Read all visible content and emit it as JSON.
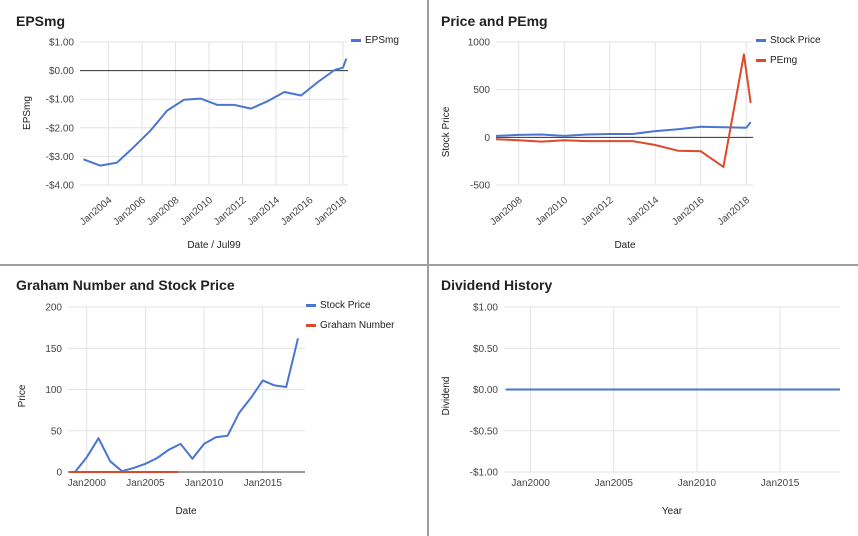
{
  "colors": {
    "blue": "#4a76d2",
    "red": "#dc4a2c",
    "grid": "#e3e3e3",
    "zero": "#333333"
  },
  "chart_data": [
    {
      "type": "line",
      "title": "EPSmg",
      "xlabel": "Date / Jul99",
      "ylabel": "EPSmg",
      "xlim": [
        2002.3,
        2018.3
      ],
      "ylim": [
        -4,
        1
      ],
      "yticks": [
        1,
        0,
        -1,
        -2,
        -3,
        -4
      ],
      "ytick_labels": [
        "$1.00",
        "$0.00",
        "-$1.00",
        "-$2.00",
        "-$3.00",
        "-$4.00"
      ],
      "xticks": [
        2004,
        2006,
        2008,
        2010,
        2012,
        2014,
        2016,
        2018
      ],
      "xtick_labels": [
        "Jan2004",
        "Jan2006",
        "Jan2008",
        "Jan2010",
        "Jan2012",
        "Jan2014",
        "Jan2016",
        "Jan2018"
      ],
      "legend_position": "top-right",
      "series": [
        {
          "name": "EPSmg",
          "color": "blue",
          "x": [
            2002.5,
            2003.5,
            2004.5,
            2005.5,
            2006.5,
            2007.5,
            2008.5,
            2009.5,
            2010.5,
            2011.5,
            2012.5,
            2013.5,
            2014.5,
            2015.5,
            2016.5,
            2017.5,
            2018.0,
            2018.2
          ],
          "y": [
            -3.1,
            -3.32,
            -3.22,
            -2.68,
            -2.1,
            -1.4,
            -1.02,
            -0.98,
            -1.2,
            -1.2,
            -1.33,
            -1.07,
            -0.75,
            -0.87,
            -0.4,
            0.02,
            0.1,
            0.42
          ]
        }
      ]
    },
    {
      "type": "line",
      "title": "Price and PEmg",
      "xlabel": "Date",
      "ylabel": "Stock Price",
      "xlim": [
        2007.0,
        2018.3
      ],
      "ylim": [
        -500,
        1000
      ],
      "yticks": [
        1000,
        500,
        0,
        -500
      ],
      "ytick_labels": [
        "1000",
        "500",
        "0",
        "-500"
      ],
      "xticks": [
        2008,
        2010,
        2012,
        2014,
        2016,
        2018
      ],
      "xtick_labels": [
        "Jan2008",
        "Jan2010",
        "Jan2012",
        "Jan2014",
        "Jan2016",
        "Jan2018"
      ],
      "legend_position": "top-right",
      "series": [
        {
          "name": "Stock Price",
          "color": "blue",
          "x": [
            2007.0,
            2008.0,
            2009.0,
            2010.0,
            2011.0,
            2012.0,
            2013.0,
            2014.0,
            2015.0,
            2016.0,
            2017.0,
            2018.0,
            2018.2
          ],
          "y": [
            15,
            25,
            30,
            15,
            30,
            35,
            35,
            65,
            85,
            110,
            105,
            100,
            160
          ]
        },
        {
          "name": "PEmg",
          "color": "red",
          "x": [
            2007.0,
            2008.0,
            2009.0,
            2010.0,
            2011.0,
            2012.0,
            2013.0,
            2014.0,
            2015.0,
            2016.0,
            2017.0,
            2017.9,
            2018.2
          ],
          "y": [
            -20,
            -30,
            -45,
            -30,
            -40,
            -40,
            -40,
            -80,
            -140,
            -145,
            -310,
            870,
            360
          ]
        }
      ]
    },
    {
      "type": "line",
      "title": "Graham Number and Stock Price",
      "xlabel": "Date",
      "ylabel": "Price",
      "xlim": [
        1998.4,
        2018.6
      ],
      "ylim": [
        0,
        200
      ],
      "yticks": [
        200,
        150,
        100,
        50,
        0
      ],
      "ytick_labels": [
        "200",
        "150",
        "100",
        "50",
        "0"
      ],
      "xticks": [
        2000,
        2005,
        2010,
        2015
      ],
      "xtick_labels": [
        "Jan2000",
        "Jan2005",
        "Jan2010",
        "Jan2015"
      ],
      "legend_position": "top-right",
      "series": [
        {
          "name": "Stock Price",
          "color": "blue",
          "x": [
            1999.0,
            2000.0,
            2001.0,
            2002.0,
            2003.0,
            2004.0,
            2005.0,
            2006.0,
            2007.0,
            2008.0,
            2009.0,
            2010.0,
            2011.0,
            2012.0,
            2013.0,
            2014.0,
            2015.0,
            2016.0,
            2017.0,
            2018.0
          ],
          "y": [
            0,
            18,
            41,
            13,
            1,
            5,
            10,
            17,
            27,
            34,
            16,
            34,
            42,
            44,
            72,
            90,
            111,
            105,
            103,
            162
          ]
        },
        {
          "name": "Graham Number",
          "color": "red",
          "x": [
            1998.5,
            2007.8
          ],
          "y": [
            0,
            0
          ]
        }
      ]
    },
    {
      "type": "line",
      "title": "Dividend History",
      "xlabel": "Year",
      "ylabel": "Dividend",
      "xlim": [
        1998.4,
        2018.6
      ],
      "ylim": [
        -1,
        1
      ],
      "yticks": [
        1,
        0.5,
        0,
        -0.5,
        -1
      ],
      "ytick_labels": [
        "$1.00",
        "$0.50",
        "$0.00",
        "-$0.50",
        "-$1.00"
      ],
      "xticks": [
        2000,
        2005,
        2010,
        2015
      ],
      "xtick_labels": [
        "Jan2000",
        "Jan2005",
        "Jan2010",
        "Jan2015"
      ],
      "legend_position": "none",
      "series": [
        {
          "name": "Dividend",
          "color": "blue",
          "x": [
            1998.5,
            2018.6
          ],
          "y": [
            0,
            0
          ]
        }
      ]
    }
  ]
}
